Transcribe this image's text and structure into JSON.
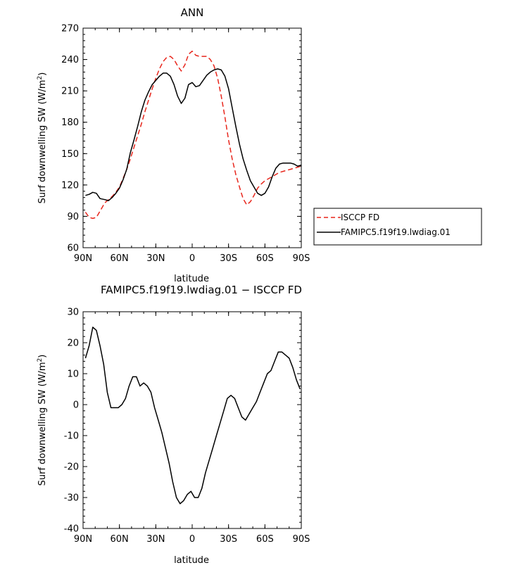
{
  "chart_data": [
    {
      "type": "line",
      "title": "ANN",
      "xlabel": "latitude",
      "ylabel": "Surf downwelling SW (W/m²)",
      "ylabel_parts": {
        "main": "Surf downwelling SW (W/m",
        "sup": "2",
        "end": ")"
      },
      "xlim": [
        90,
        -90
      ],
      "ylim": [
        60,
        270
      ],
      "x_ticks": [
        {
          "value": 90,
          "label": "90N"
        },
        {
          "value": 60,
          "label": "60N"
        },
        {
          "value": 30,
          "label": "30N"
        },
        {
          "value": 0,
          "label": "0"
        },
        {
          "value": -30,
          "label": "30S"
        },
        {
          "value": -60,
          "label": "60S"
        },
        {
          "value": -90,
          "label": "90S"
        }
      ],
      "y_ticks": [
        60,
        90,
        120,
        150,
        180,
        210,
        240,
        270
      ],
      "grid": false,
      "legend_position": "right",
      "series": [
        {
          "name": "ISCCP FD",
          "color": "#e8261c",
          "dash": "dashed",
          "x": [
            88,
            85,
            82,
            79,
            76,
            72,
            69,
            66,
            63,
            60,
            57,
            54,
            51,
            48,
            45,
            42,
            39,
            36,
            33,
            30,
            27,
            24,
            21,
            18,
            15,
            12,
            9,
            6,
            3,
            0,
            -3,
            -6,
            -9,
            -12,
            -15,
            -18,
            -21,
            -24,
            -27,
            -30,
            -33,
            -36,
            -39,
            -42,
            -45,
            -48,
            -51,
            -54,
            -57,
            -60,
            -63,
            -66,
            -69,
            -72,
            -75,
            -78,
            -81,
            -84,
            -87,
            -90
          ],
          "y": [
            94,
            89,
            88,
            89,
            95,
            103,
            106,
            109,
            113,
            118,
            126,
            135,
            145,
            156,
            167,
            178,
            190,
            201,
            212,
            222,
            231,
            238,
            242,
            243,
            240,
            234,
            229,
            235,
            245,
            248,
            244,
            243,
            243,
            243,
            240,
            234,
            222,
            205,
            185,
            163,
            145,
            130,
            118,
            107,
            101,
            104,
            110,
            117,
            121,
            124,
            126,
            128,
            130,
            132,
            133,
            134,
            135,
            136,
            137,
            138
          ]
        },
        {
          "name": "FAMIPC5.f19f19.lwdiag.01",
          "color": "#000000",
          "dash": "solid",
          "x": [
            88,
            85,
            82,
            79,
            76,
            72,
            69,
            66,
            63,
            60,
            57,
            54,
            51,
            48,
            45,
            42,
            39,
            36,
            33,
            30,
            27,
            24,
            21,
            18,
            15,
            12,
            9,
            6,
            3,
            0,
            -3,
            -6,
            -9,
            -12,
            -15,
            -18,
            -21,
            -24,
            -27,
            -30,
            -33,
            -36,
            -39,
            -42,
            -45,
            -48,
            -51,
            -54,
            -57,
            -60,
            -63,
            -66,
            -69,
            -72,
            -75,
            -78,
            -81,
            -84,
            -87,
            -90
          ],
          "y": [
            110,
            111,
            113,
            112,
            107,
            106,
            105,
            108,
            112,
            117,
            125,
            135,
            151,
            163,
            176,
            190,
            201,
            209,
            216,
            220,
            224,
            227,
            227,
            224,
            216,
            205,
            198,
            203,
            216,
            218,
            214,
            215,
            220,
            225,
            228,
            230,
            231,
            230,
            224,
            212,
            194,
            176,
            159,
            145,
            134,
            124,
            118,
            112,
            110,
            112,
            118,
            128,
            136,
            140,
            141,
            141,
            141,
            140,
            138,
            139
          ]
        }
      ]
    },
    {
      "type": "line",
      "title": "FAMIPC5.f19f19.lwdiag.01 − ISCCP FD",
      "xlabel": "latitude",
      "ylabel": "Surf downwelling SW (W/m²)",
      "ylabel_parts": {
        "main": "Surf downwelling SW (W/m",
        "sup": "2",
        "end": ")"
      },
      "xlim": [
        90,
        -90
      ],
      "ylim": [
        -40,
        30
      ],
      "x_ticks": [
        {
          "value": 90,
          "label": "90N"
        },
        {
          "value": 60,
          "label": "60N"
        },
        {
          "value": 30,
          "label": "30N"
        },
        {
          "value": 0,
          "label": "0"
        },
        {
          "value": -30,
          "label": "30S"
        },
        {
          "value": -60,
          "label": "60S"
        },
        {
          "value": -90,
          "label": "90S"
        }
      ],
      "y_ticks": [
        -40,
        -30,
        -20,
        -10,
        0,
        10,
        20,
        30
      ],
      "grid": false,
      "series": [
        {
          "name": "",
          "color": "#000000",
          "dash": "solid",
          "x": [
            88,
            85,
            82,
            79,
            76,
            73,
            70,
            67,
            64,
            61,
            58,
            55,
            52,
            49,
            46,
            43,
            40,
            37,
            34,
            31,
            28,
            25,
            22,
            19,
            16,
            13,
            10,
            7,
            4,
            1,
            -2,
            -5,
            -8,
            -11,
            -14,
            -17,
            -20,
            -23,
            -26,
            -29,
            -32,
            -35,
            -38,
            -41,
            -44,
            -47,
            -50,
            -53,
            -56,
            -59,
            -62,
            -65,
            -68,
            -71,
            -74,
            -77,
            -80,
            -83,
            -86,
            -89
          ],
          "y": [
            15,
            19,
            25,
            24,
            19,
            13,
            4,
            -1,
            -1,
            -1,
            0,
            2,
            6,
            9,
            9,
            6,
            7,
            6,
            4,
            -1,
            -5,
            -9,
            -14,
            -19,
            -25,
            -30,
            -32,
            -31,
            -29,
            -28,
            -30,
            -30,
            -27,
            -22,
            -18,
            -14,
            -10,
            -6,
            -2,
            2,
            3,
            2,
            -1,
            -4,
            -5,
            -3,
            -1,
            1,
            4,
            7,
            10,
            11,
            14,
            17,
            17,
            16,
            15,
            12,
            8,
            5
          ]
        }
      ]
    }
  ]
}
